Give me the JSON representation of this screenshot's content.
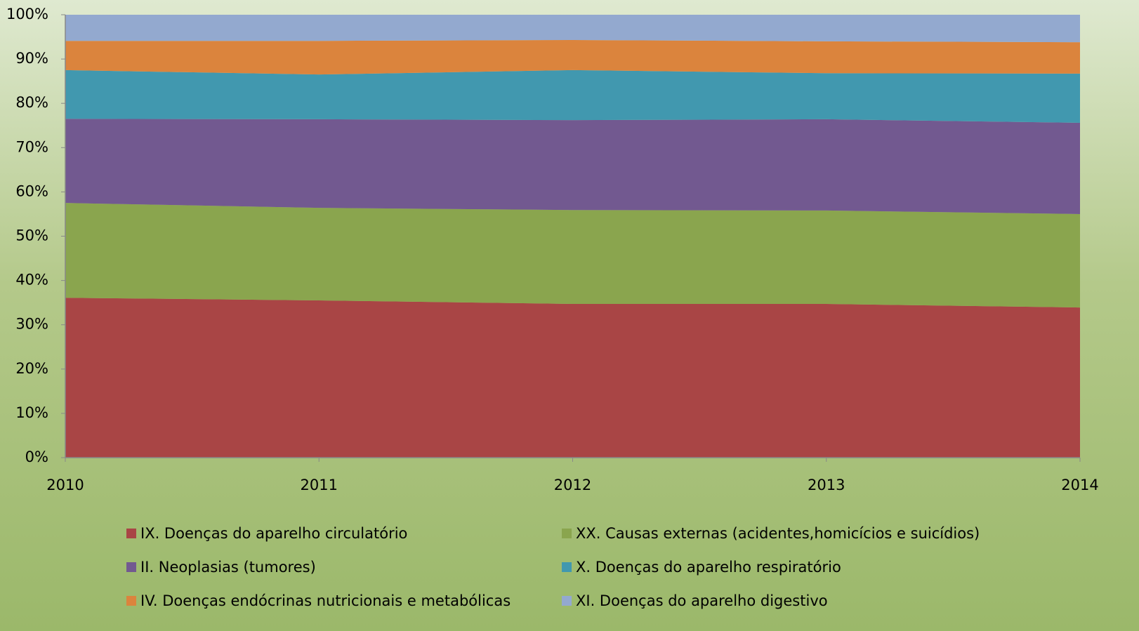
{
  "chart_data": {
    "type": "stacked_area",
    "x": [
      2010,
      2011,
      2012,
      2013,
      2014
    ],
    "xlim": [
      2010,
      2014
    ],
    "xticks": [
      2010,
      2011,
      2012,
      2013,
      2014
    ],
    "ylim": [
      0,
      100
    ],
    "yticks": [
      {
        "value": 0,
        "label": "0%"
      },
      {
        "value": 10,
        "label": "10%"
      },
      {
        "value": 20,
        "label": "20%"
      },
      {
        "value": 30,
        "label": "30%"
      },
      {
        "value": 40,
        "label": "40%"
      },
      {
        "value": 50,
        "label": "50%"
      },
      {
        "value": 60,
        "label": "60%"
      },
      {
        "value": 70,
        "label": "70%"
      },
      {
        "value": 80,
        "label": "80%"
      },
      {
        "value": 90,
        "label": "90%"
      },
      {
        "value": 100,
        "label": "100%"
      }
    ],
    "grid": false,
    "legend": "bottom",
    "series": [
      {
        "name": "IX. Doenças do aparelho circulatório",
        "color": "#a94545",
        "values": [
          36.1,
          35.5,
          34.7,
          34.7,
          33.9
        ]
      },
      {
        "name": "XX. Causas externas (acidentes,homicícios e suicídios)",
        "color": "#8aa54e",
        "values": [
          21.4,
          20.9,
          21.2,
          21.1,
          21.1
        ]
      },
      {
        "name": "II. Neoplasias (tumores)",
        "color": "#725990",
        "values": [
          19.0,
          20.0,
          20.3,
          20.6,
          20.6
        ]
      },
      {
        "name": "X. Doenças do aparelho respiratório",
        "color": "#4198af",
        "values": [
          11.0,
          10.1,
          11.3,
          10.4,
          11.1
        ]
      },
      {
        "name": "IV. Doenças endócrinas nutricionais e metabólicas",
        "color": "#db843d",
        "values": [
          6.6,
          7.6,
          6.8,
          7.2,
          7.1
        ]
      },
      {
        "name": "XI. Doenças do aparelho digestivo",
        "color": "#93a9cf",
        "values": [
          5.9,
          5.9,
          5.7,
          6.0,
          6.2
        ]
      }
    ]
  }
}
